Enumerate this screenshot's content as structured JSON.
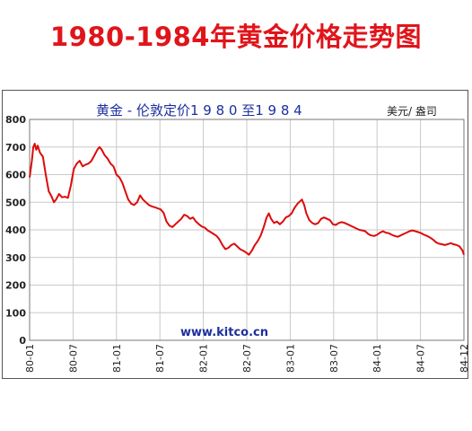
{
  "page": {
    "title": "1980-1984年黄金价格走势图",
    "title_color": "#e0151b"
  },
  "chart_data": {
    "type": "line",
    "title": "黄金  - 伦敦定价1 9 8 0 至1 9 8 4",
    "unit": "美元/ 盎司",
    "watermark": "www.kitco.cn",
    "title_color": "#1c2f9e",
    "line_color": "#dd0a0a",
    "grid_color": "#c9c9c9",
    "grid": true,
    "ylim": [
      0,
      800
    ],
    "yticks": [
      0,
      100,
      200,
      300,
      400,
      500,
      600,
      700,
      800
    ],
    "x_tick_labels": [
      "80-01",
      "80-07",
      "81-01",
      "81-07",
      "82-01",
      "82-07",
      "83-01",
      "83-07",
      "84-01",
      "84-07",
      "84-12"
    ],
    "x_range_months": [
      0,
      59
    ],
    "points": [
      [
        0.0,
        590
      ],
      [
        0.3,
        650
      ],
      [
        0.5,
        700
      ],
      [
        0.7,
        712
      ],
      [
        0.9,
        690
      ],
      [
        1.1,
        705
      ],
      [
        1.4,
        680
      ],
      [
        1.8,
        665
      ],
      [
        2.2,
        600
      ],
      [
        2.6,
        540
      ],
      [
        3.0,
        520
      ],
      [
        3.3,
        500
      ],
      [
        3.6,
        510
      ],
      [
        4.0,
        530
      ],
      [
        4.4,
        518
      ],
      [
        4.8,
        520
      ],
      [
        5.2,
        516
      ],
      [
        5.6,
        560
      ],
      [
        6.0,
        620
      ],
      [
        6.4,
        640
      ],
      [
        6.8,
        650
      ],
      [
        7.2,
        630
      ],
      [
        7.6,
        636
      ],
      [
        8.0,
        640
      ],
      [
        8.4,
        650
      ],
      [
        8.8,
        670
      ],
      [
        9.2,
        690
      ],
      [
        9.5,
        700
      ],
      [
        9.8,
        690
      ],
      [
        10.2,
        670
      ],
      [
        10.6,
        658
      ],
      [
        11.0,
        640
      ],
      [
        11.4,
        630
      ],
      [
        11.8,
        600
      ],
      [
        12.2,
        590
      ],
      [
        12.6,
        570
      ],
      [
        13.0,
        540
      ],
      [
        13.4,
        510
      ],
      [
        13.8,
        495
      ],
      [
        14.2,
        490
      ],
      [
        14.6,
        500
      ],
      [
        15.0,
        525
      ],
      [
        15.4,
        510
      ],
      [
        15.8,
        500
      ],
      [
        16.2,
        490
      ],
      [
        16.6,
        485
      ],
      [
        17.0,
        482
      ],
      [
        17.4,
        478
      ],
      [
        17.8,
        474
      ],
      [
        18.2,
        462
      ],
      [
        18.6,
        430
      ],
      [
        19.0,
        415
      ],
      [
        19.4,
        410
      ],
      [
        19.8,
        420
      ],
      [
        20.2,
        430
      ],
      [
        20.6,
        440
      ],
      [
        21.0,
        455
      ],
      [
        21.4,
        450
      ],
      [
        21.8,
        440
      ],
      [
        22.2,
        445
      ],
      [
        22.6,
        430
      ],
      [
        23.0,
        420
      ],
      [
        23.4,
        412
      ],
      [
        23.8,
        408
      ],
      [
        24.2,
        398
      ],
      [
        24.6,
        392
      ],
      [
        25.0,
        385
      ],
      [
        25.4,
        378
      ],
      [
        25.8,
        365
      ],
      [
        26.2,
        345
      ],
      [
        26.6,
        330
      ],
      [
        27.0,
        335
      ],
      [
        27.4,
        345
      ],
      [
        27.8,
        350
      ],
      [
        28.2,
        340
      ],
      [
        28.6,
        330
      ],
      [
        29.0,
        325
      ],
      [
        29.4,
        318
      ],
      [
        29.8,
        310
      ],
      [
        30.2,
        325
      ],
      [
        30.6,
        345
      ],
      [
        31.0,
        360
      ],
      [
        31.4,
        380
      ],
      [
        31.8,
        410
      ],
      [
        32.2,
        445
      ],
      [
        32.5,
        460
      ],
      [
        32.8,
        440
      ],
      [
        33.2,
        425
      ],
      [
        33.6,
        430
      ],
      [
        34.0,
        420
      ],
      [
        34.4,
        430
      ],
      [
        34.8,
        445
      ],
      [
        35.2,
        450
      ],
      [
        35.6,
        460
      ],
      [
        36.0,
        480
      ],
      [
        36.4,
        495
      ],
      [
        36.8,
        505
      ],
      [
        37.0,
        510
      ],
      [
        37.3,
        490
      ],
      [
        37.6,
        460
      ],
      [
        38.0,
        435
      ],
      [
        38.4,
        425
      ],
      [
        38.8,
        420
      ],
      [
        39.2,
        425
      ],
      [
        39.6,
        440
      ],
      [
        40.0,
        445
      ],
      [
        40.4,
        440
      ],
      [
        40.8,
        435
      ],
      [
        41.2,
        420
      ],
      [
        41.6,
        418
      ],
      [
        42.0,
        425
      ],
      [
        42.4,
        428
      ],
      [
        42.8,
        425
      ],
      [
        43.2,
        420
      ],
      [
        43.6,
        415
      ],
      [
        44.0,
        410
      ],
      [
        44.4,
        405
      ],
      [
        44.8,
        400
      ],
      [
        45.2,
        398
      ],
      [
        45.6,
        395
      ],
      [
        46.0,
        385
      ],
      [
        46.4,
        380
      ],
      [
        46.8,
        378
      ],
      [
        47.2,
        382
      ],
      [
        47.6,
        390
      ],
      [
        48.0,
        395
      ],
      [
        48.4,
        390
      ],
      [
        48.8,
        388
      ],
      [
        49.2,
        382
      ],
      [
        49.6,
        378
      ],
      [
        50.0,
        375
      ],
      [
        50.4,
        380
      ],
      [
        50.8,
        385
      ],
      [
        51.2,
        390
      ],
      [
        51.6,
        395
      ],
      [
        52.0,
        398
      ],
      [
        52.4,
        395
      ],
      [
        52.8,
        392
      ],
      [
        53.2,
        388
      ],
      [
        53.6,
        382
      ],
      [
        54.0,
        378
      ],
      [
        54.4,
        372
      ],
      [
        54.8,
        365
      ],
      [
        55.2,
        355
      ],
      [
        55.6,
        350
      ],
      [
        56.0,
        348
      ],
      [
        56.4,
        345
      ],
      [
        56.8,
        348
      ],
      [
        57.2,
        352
      ],
      [
        57.6,
        348
      ],
      [
        58.0,
        345
      ],
      [
        58.4,
        340
      ],
      [
        58.8,
        325
      ],
      [
        59.0,
        310
      ]
    ]
  }
}
